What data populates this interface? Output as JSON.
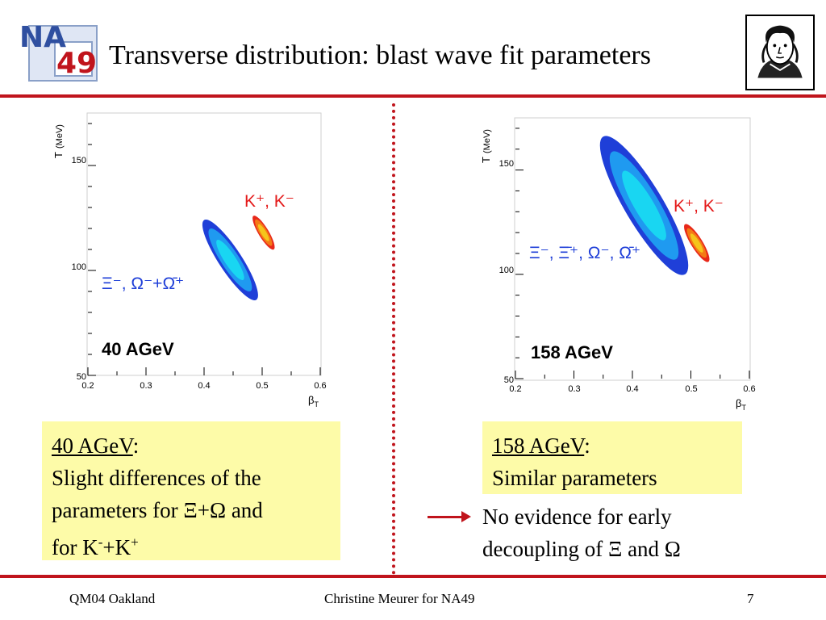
{
  "slide": {
    "logo_text_top": "NA",
    "logo_text_bottom": "49",
    "title": "Transverse distribution: blast wave fit parameters",
    "portrait_icon": "goethe-portrait-icon",
    "accent_color": "#c0141c"
  },
  "chart_data": [
    {
      "type": "contour",
      "ylabel": "T",
      "ylabel_unit": "(MeV)",
      "xlabel": "β",
      "xlabel_sub": "T",
      "xlim": [
        0.2,
        0.6
      ],
      "ylim": [
        50,
        175
      ],
      "xticks": [
        "0.2",
        "0.3",
        "0.4",
        "0.5",
        "0.6"
      ],
      "yticks": [
        "50",
        "100",
        "150"
      ],
      "energy_label": "40 AGeV",
      "series": [
        {
          "name": "Ξ⁻, Ω⁻+Ω̄⁺",
          "label_color": "#1f3fd8",
          "center": [
            0.445,
            107
          ],
          "extent_start": [
            0.4,
            124
          ],
          "extent_end": [
            0.49,
            86
          ],
          "palette": [
            "#1f3fd8",
            "#1f9af0",
            "#19d6f2"
          ]
        },
        {
          "name": "K⁺, K⁻",
          "label_color": "#e41a1a",
          "center": [
            0.503,
            118
          ],
          "extent_start": [
            0.485,
            126
          ],
          "extent_end": [
            0.52,
            110
          ],
          "palette": [
            "#e8281a",
            "#f47a16",
            "#f5c51c"
          ]
        }
      ]
    },
    {
      "type": "contour",
      "ylabel": "T",
      "ylabel_unit": "(MeV)",
      "xlabel": "β",
      "xlabel_sub": "T",
      "xlim": [
        0.2,
        0.6
      ],
      "ylim": [
        50,
        175
      ],
      "xticks": [
        "0.2",
        "0.3",
        "0.4",
        "0.5",
        "0.6"
      ],
      "yticks": [
        "50",
        "100",
        "150"
      ],
      "energy_label": "158 AGeV",
      "series": [
        {
          "name": "Ξ⁻, Ξ̄⁺, Ω⁻, Ω̄⁺",
          "label_color": "#1f3fd8",
          "center": [
            0.42,
            131
          ],
          "extent_start": [
            0.35,
            166
          ],
          "extent_end": [
            0.49,
            100
          ],
          "palette": [
            "#1f3fd8",
            "#1f9af0",
            "#19d6f2"
          ]
        },
        {
          "name": "K⁺, K⁻",
          "label_color": "#e41a1a",
          "center": [
            0.51,
            115
          ],
          "extent_start": [
            0.49,
            124
          ],
          "extent_end": [
            0.53,
            106
          ],
          "palette": [
            "#e8281a",
            "#f47a16",
            "#f5c51c"
          ]
        }
      ]
    }
  ],
  "box_left": {
    "heading": "40 AGeV",
    "line1": "Slight differences of the",
    "line2_pre": "parameters for ",
    "line2_sym": "Ξ+Ω",
    "line2_post": " and",
    "line3_pre": "for K",
    "line3_sup1": "-",
    "line3_mid": "+K",
    "line3_sup2": "+"
  },
  "box_right": {
    "heading": "158 AGeV",
    "line1": "Similar parameters"
  },
  "conclusion": {
    "arrow_icon": "right-arrow-icon",
    "line1": "No evidence for early",
    "line2": "decoupling of Ξ and Ω"
  },
  "footer": {
    "left": "QM04 Oakland",
    "center": "Christine Meurer for NA49",
    "page": "7"
  }
}
